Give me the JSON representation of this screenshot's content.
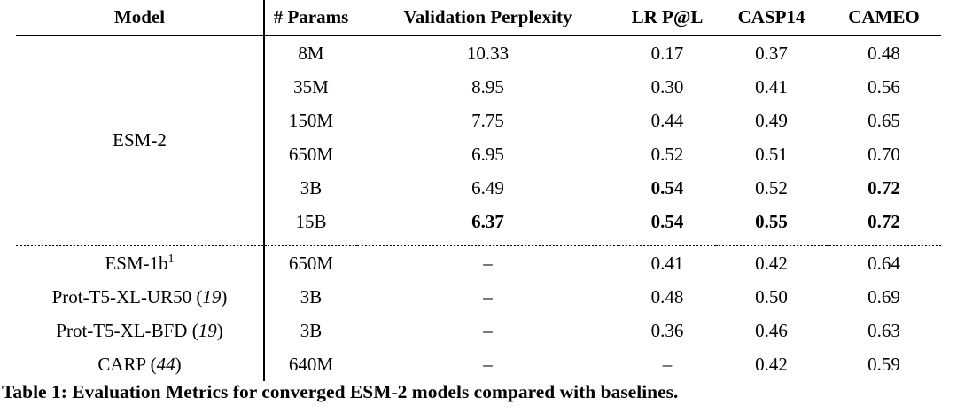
{
  "caption": "Table 1: Evaluation Metrics for converged ESM-2 models compared with baselines.",
  "table": {
    "background_color": "#ffffff",
    "text_color": "#000000",
    "columns": [
      "Model",
      "# Params",
      "Validation Perplexity",
      "LR P@L",
      "CASP14",
      "CAMEO"
    ],
    "esm2_group": {
      "model": "ESM-2",
      "rows": [
        {
          "params": "8M",
          "perplexity": "10.33",
          "lr_p_at_l": "0.17",
          "casp14": "0.37",
          "cameo": "0.48"
        },
        {
          "params": "35M",
          "perplexity": "8.95",
          "lr_p_at_l": "0.30",
          "casp14": "0.41",
          "cameo": "0.56"
        },
        {
          "params": "150M",
          "perplexity": "7.75",
          "lr_p_at_l": "0.44",
          "casp14": "0.49",
          "cameo": "0.65"
        },
        {
          "params": "650M",
          "perplexity": "6.95",
          "lr_p_at_l": "0.52",
          "casp14": "0.51",
          "cameo": "0.70"
        },
        {
          "params": "3B",
          "perplexity": "6.49",
          "lr_p_at_l": "0.54",
          "casp14": "0.52",
          "cameo": "0.72"
        },
        {
          "params": "15B",
          "perplexity": "6.37",
          "lr_p_at_l": "0.54",
          "casp14": "0.55",
          "cameo": "0.72"
        }
      ]
    },
    "baseline_rows": [
      {
        "model": "ESM-1b",
        "model_superscript": "1",
        "params": "650M",
        "perplexity": "–",
        "lr_p_at_l": "0.41",
        "casp14": "0.42",
        "cameo": "0.64"
      },
      {
        "model_prefix": "Prot-T5-XL-UR50 (",
        "model_ref": "19",
        "model_suffix": ")",
        "params": "3B",
        "perplexity": "–",
        "lr_p_at_l": "0.48",
        "casp14": "0.50",
        "cameo": "0.69"
      },
      {
        "model_prefix": "Prot-T5-XL-BFD (",
        "model_ref": "19",
        "model_suffix": ")",
        "params": "3B",
        "perplexity": "–",
        "lr_p_at_l": "0.36",
        "casp14": "0.46",
        "cameo": "0.63"
      },
      {
        "model_prefix": "CARP (",
        "model_ref": "44",
        "model_suffix": ")",
        "params": "640M",
        "perplexity": "–",
        "lr_p_at_l": "–",
        "casp14": "0.42",
        "cameo": "0.59"
      }
    ]
  }
}
